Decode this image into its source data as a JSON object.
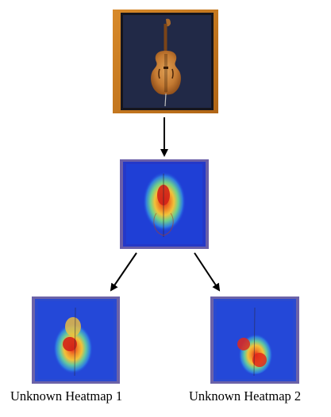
{
  "nodes": {
    "original": {
      "description": "original cello image"
    },
    "heatmap_center": {
      "description": "attention heatmap overlay"
    },
    "heatmap_left": {
      "caption": "Unknown Heatmap 1"
    },
    "heatmap_right": {
      "caption": "Unknown Heatmap 2"
    }
  },
  "edges": [
    {
      "from": "original",
      "to": "heatmap_center"
    },
    {
      "from": "heatmap_center",
      "to": "heatmap_left"
    },
    {
      "from": "heatmap_center",
      "to": "heatmap_right"
    }
  ],
  "colors": {
    "frame_orange": "#c87a1e",
    "cello_body": "#c8803a",
    "heat_low": "#1f3fd6",
    "heat_mid": "#3ec4b8",
    "heat_warm": "#f2c23a",
    "heat_high": "#e2281a"
  }
}
